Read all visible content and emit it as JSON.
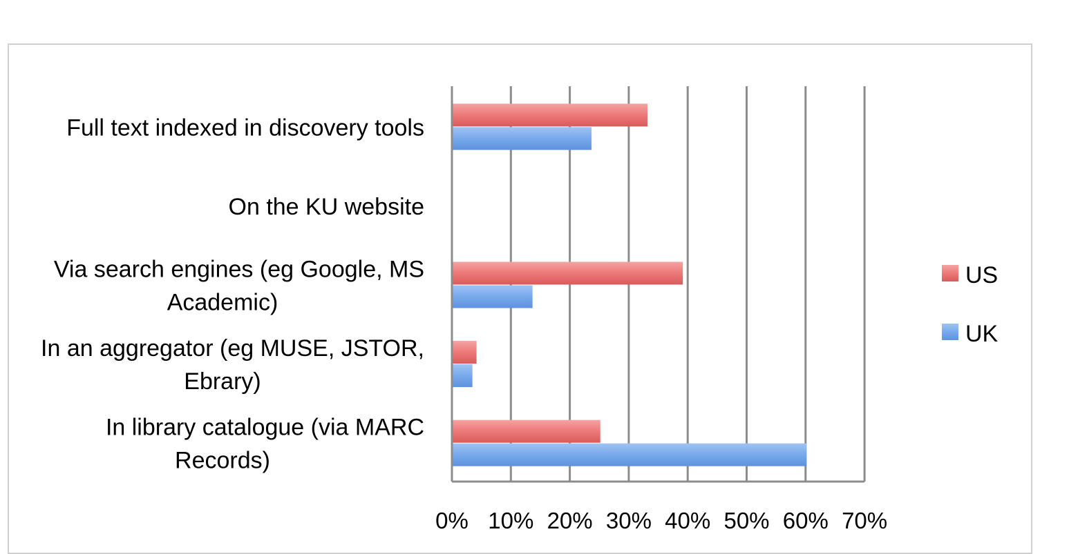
{
  "chart_data": {
    "type": "bar",
    "orientation": "horizontal",
    "categories": [
      "Full text indexed in discovery tools",
      "On the KU website",
      "Via search engines (eg Google, MS Academic)",
      "In an aggregator (eg MUSE, JSTOR, Ebrary)",
      "In library catalogue (via MARC Records)"
    ],
    "series": [
      {
        "name": "US",
        "color": "#e8696a",
        "values": [
          33,
          0,
          39,
          4,
          25
        ]
      },
      {
        "name": "UK",
        "color": "#6fa2e8",
        "values": [
          23.5,
          0,
          13.5,
          3.3,
          60
        ]
      }
    ],
    "xticks": [
      "0%",
      "10%",
      "20%",
      "30%",
      "40%",
      "50%",
      "60%",
      "70%"
    ],
    "xlim": [
      0,
      70
    ],
    "grid": true,
    "legend_position": "right",
    "title": "",
    "xlabel": "",
    "ylabel": ""
  }
}
